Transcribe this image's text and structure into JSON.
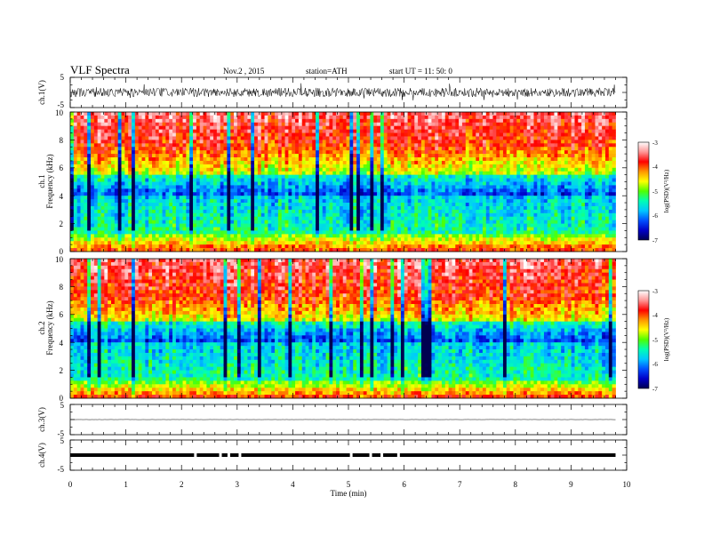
{
  "header": {
    "title": "VLF  Spectra",
    "date": "Nov.2  , 2015",
    "station": "station=ATH",
    "start": "start  UT  =   11: 50: 0"
  },
  "chart_data": [
    {
      "type": "line",
      "panel": "ch1-waveform",
      "ylabel": "ch.1(V)",
      "y_ticks": [
        "5",
        "-5"
      ],
      "ylim": [
        -5,
        5
      ],
      "data_end_min": 9.8,
      "noise_amplitude_v": 1.5
    },
    {
      "type": "heatmap",
      "panel": "ch1-spectrogram",
      "ylabel_top": "ch.1",
      "ylabel": "Frequency  (kHz)",
      "ylim": [
        0,
        10
      ],
      "y_ticks": [
        "0",
        "2",
        "4",
        "6",
        "8",
        "10"
      ],
      "data_end_min": 9.8,
      "colorbar": {
        "label": "log(PSD)(V²/Hz)",
        "range": [
          -7,
          -3
        ],
        "ticks": [
          "-3",
          "-4",
          "-5",
          "-6",
          "-7"
        ]
      }
    },
    {
      "type": "heatmap",
      "panel": "ch2-spectrogram",
      "ylabel_top": "ch.2",
      "ylabel": "Frequency  (kHz)",
      "ylim": [
        0,
        10
      ],
      "y_ticks": [
        "0",
        "2",
        "4",
        "6",
        "8",
        "10"
      ],
      "data_end_min": 9.8,
      "colorbar": {
        "label": "log(PSD)(V²/Hz)",
        "range": [
          -7,
          -3
        ],
        "ticks": [
          "-3",
          "-4",
          "-5",
          "-6",
          "-7"
        ]
      }
    },
    {
      "type": "line",
      "panel": "ch3-waveform",
      "ylabel": "ch.3(V)",
      "y_ticks": [
        "5",
        "-5"
      ],
      "ylim": [
        -5,
        5
      ],
      "data_end_min": 9.8,
      "level_v": 0
    },
    {
      "type": "line",
      "panel": "ch4-waveform",
      "ylabel": "ch.4(V)",
      "y_ticks": [
        "5",
        "-5"
      ],
      "ylim": [
        -5,
        5
      ],
      "data_end_min": 9.8,
      "level_v": 0,
      "gaps_min": [
        2.25,
        2.7,
        2.85,
        3.05,
        5.05,
        5.4,
        5.6,
        5.9
      ]
    }
  ],
  "x_axis": {
    "xlabel": "Time  (min)",
    "xlim": [
      0,
      10
    ],
    "ticks": [
      "0",
      "1",
      "2",
      "3",
      "4",
      "5",
      "6",
      "7",
      "8",
      "9",
      "10"
    ]
  },
  "colors": {
    "colormap": [
      "#000050",
      "#0000c8",
      "#0050ff",
      "#00c8ff",
      "#00ffb4",
      "#50ff00",
      "#ffff00",
      "#ff9600",
      "#ff0000",
      "#ff9696",
      "#ffffff"
    ]
  }
}
